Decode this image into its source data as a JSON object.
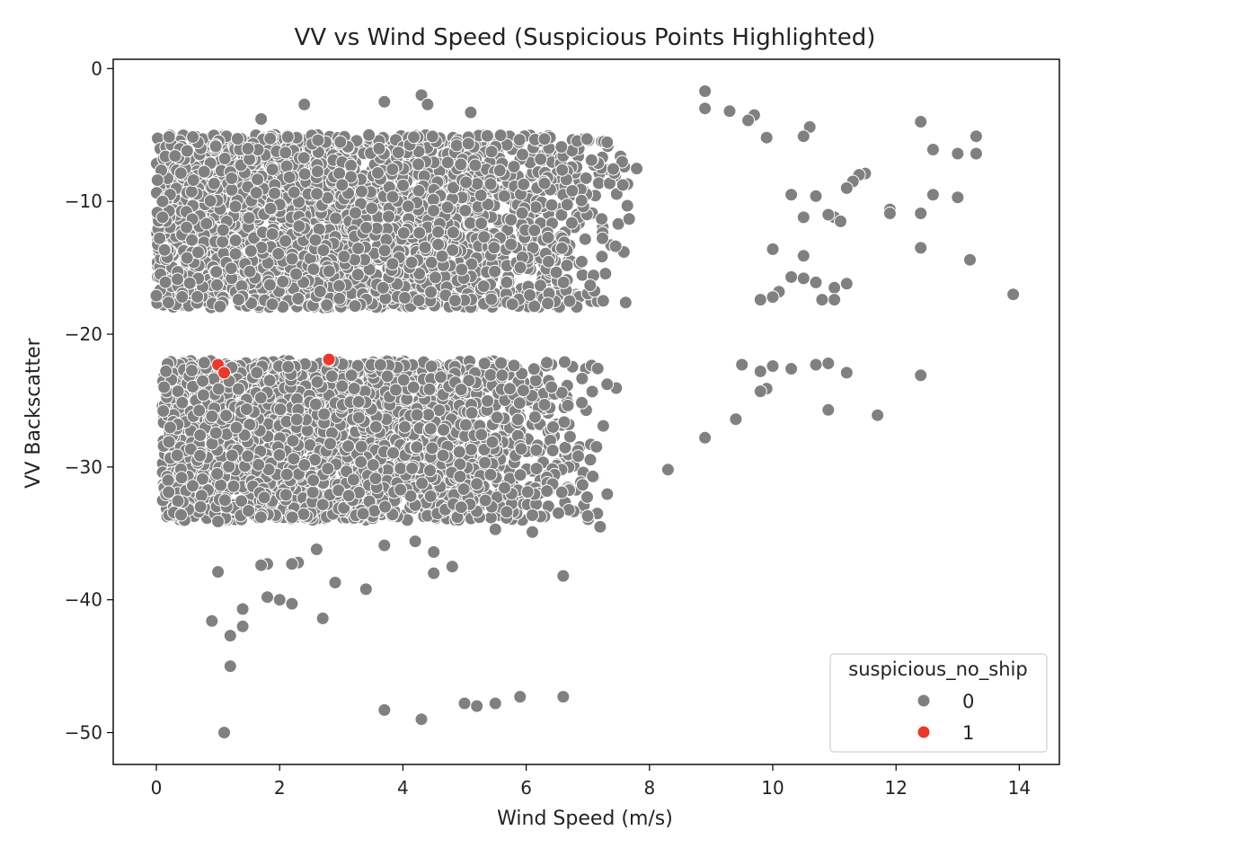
{
  "chart_data": {
    "type": "scatter",
    "title": "VV vs Wind Speed (Suspicious Points Highlighted)",
    "xlabel": "Wind Speed (m/s)",
    "ylabel": "VV Backscatter",
    "xlim": [
      -0.7,
      14.65
    ],
    "ylim": [
      -52.4,
      0.7
    ],
    "xticks": [
      0,
      2,
      4,
      6,
      8,
      10,
      12,
      14
    ],
    "xtick_labels": [
      "0",
      "2",
      "4",
      "6",
      "8",
      "10",
      "12",
      "14"
    ],
    "yticks": [
      0,
      -10,
      -20,
      -30,
      -40,
      -50
    ],
    "ytick_labels": [
      "0",
      "−10",
      "−20",
      "−30",
      "−40",
      "−50"
    ],
    "grid": false,
    "legend": {
      "title": "suspicious_no_ship",
      "position": "lower right"
    },
    "colors": {
      "0": "#808080",
      "1": "#e8392c"
    },
    "series": [
      {
        "name": "0",
        "dense_regions": [
          {
            "x": [
              0.0,
              8.0
            ],
            "y": [
              -18.0,
              -5.0
            ],
            "n": 2600
          },
          {
            "x": [
              0.1,
              7.5
            ],
            "y": [
              -34.0,
              -22.0
            ],
            "n": 2400
          }
        ],
        "points": [
          [
            8.9,
            -1.7
          ],
          [
            8.9,
            -3.0
          ],
          [
            9.3,
            -3.2
          ],
          [
            9.7,
            -3.5
          ],
          [
            9.6,
            -3.9
          ],
          [
            4.3,
            -2.0
          ],
          [
            4.4,
            -2.7
          ],
          [
            3.7,
            -2.5
          ],
          [
            2.4,
            -2.7
          ],
          [
            5.1,
            -3.3
          ],
          [
            12.4,
            -4.0
          ],
          [
            10.6,
            -4.4
          ],
          [
            10.5,
            -5.1
          ],
          [
            9.9,
            -5.2
          ],
          [
            13.3,
            -5.1
          ],
          [
            12.6,
            -6.1
          ],
          [
            13.0,
            -6.4
          ],
          [
            13.3,
            -6.4
          ],
          [
            11.5,
            -7.9
          ],
          [
            11.4,
            -8.0
          ],
          [
            11.3,
            -8.5
          ],
          [
            11.2,
            -9.0
          ],
          [
            10.7,
            -9.6
          ],
          [
            10.3,
            -9.5
          ],
          [
            12.6,
            -9.5
          ],
          [
            13.0,
            -9.7
          ],
          [
            11.9,
            -10.6
          ],
          [
            11.9,
            -10.9
          ],
          [
            12.4,
            -10.9
          ],
          [
            11.0,
            -11.2
          ],
          [
            11.1,
            -11.5
          ],
          [
            10.9,
            -11.0
          ],
          [
            10.5,
            -11.2
          ],
          [
            12.4,
            -13.5
          ],
          [
            13.2,
            -14.4
          ],
          [
            10.0,
            -13.6
          ],
          [
            10.5,
            -14.1
          ],
          [
            10.3,
            -15.7
          ],
          [
            10.5,
            -15.8
          ],
          [
            10.7,
            -16.1
          ],
          [
            11.2,
            -16.2
          ],
          [
            11.0,
            -16.5
          ],
          [
            11.0,
            -17.4
          ],
          [
            10.8,
            -17.4
          ],
          [
            10.1,
            -16.8
          ],
          [
            10.0,
            -17.2
          ],
          [
            9.8,
            -17.4
          ],
          [
            13.9,
            -17.0
          ],
          [
            9.5,
            -22.3
          ],
          [
            9.8,
            -22.8
          ],
          [
            10.0,
            -22.4
          ],
          [
            10.3,
            -22.6
          ],
          [
            10.7,
            -22.3
          ],
          [
            10.9,
            -22.2
          ],
          [
            11.2,
            -22.9
          ],
          [
            12.4,
            -23.1
          ],
          [
            9.9,
            -24.1
          ],
          [
            9.8,
            -24.3
          ],
          [
            10.9,
            -25.7
          ],
          [
            11.7,
            -26.1
          ],
          [
            9.4,
            -26.4
          ],
          [
            8.9,
            -27.8
          ],
          [
            8.3,
            -30.2
          ],
          [
            7.2,
            -34.5
          ],
          [
            6.6,
            -38.2
          ],
          [
            5.5,
            -34.7
          ],
          [
            6.1,
            -34.9
          ],
          [
            4.5,
            -36.4
          ],
          [
            4.2,
            -35.6
          ],
          [
            4.5,
            -38.0
          ],
          [
            4.8,
            -37.5
          ],
          [
            3.7,
            -35.9
          ],
          [
            3.4,
            -39.2
          ],
          [
            2.9,
            -38.7
          ],
          [
            2.7,
            -41.4
          ],
          [
            2.6,
            -36.2
          ],
          [
            2.3,
            -37.2
          ],
          [
            2.2,
            -37.3
          ],
          [
            2.2,
            -40.3
          ],
          [
            2.0,
            -40.0
          ],
          [
            1.8,
            -39.8
          ],
          [
            1.8,
            -37.3
          ],
          [
            1.7,
            -37.4
          ],
          [
            1.4,
            -40.7
          ],
          [
            1.4,
            -42.0
          ],
          [
            1.2,
            -42.7
          ],
          [
            1.0,
            -37.9
          ],
          [
            1.0,
            -34.1
          ],
          [
            1.2,
            -45.0
          ],
          [
            0.9,
            -41.6
          ],
          [
            1.1,
            -50.0
          ],
          [
            3.7,
            -48.3
          ],
          [
            4.3,
            -49.0
          ],
          [
            5.0,
            -47.8
          ],
          [
            5.2,
            -48.0
          ],
          [
            5.5,
            -47.8
          ],
          [
            5.9,
            -47.3
          ],
          [
            6.6,
            -47.3
          ],
          [
            0.0,
            -17.1
          ],
          [
            0.1,
            -10.0
          ],
          [
            0.1,
            -11.2
          ],
          [
            0.5,
            -6.2
          ],
          [
            0.6,
            -8.4
          ],
          [
            1.7,
            -3.8
          ],
          [
            0.2,
            -31.9
          ],
          [
            0.4,
            -33.6
          ]
        ]
      },
      {
        "name": "1",
        "points": [
          [
            1.0,
            -22.3
          ],
          [
            1.1,
            -22.9
          ],
          [
            2.8,
            -21.9
          ]
        ]
      }
    ]
  }
}
